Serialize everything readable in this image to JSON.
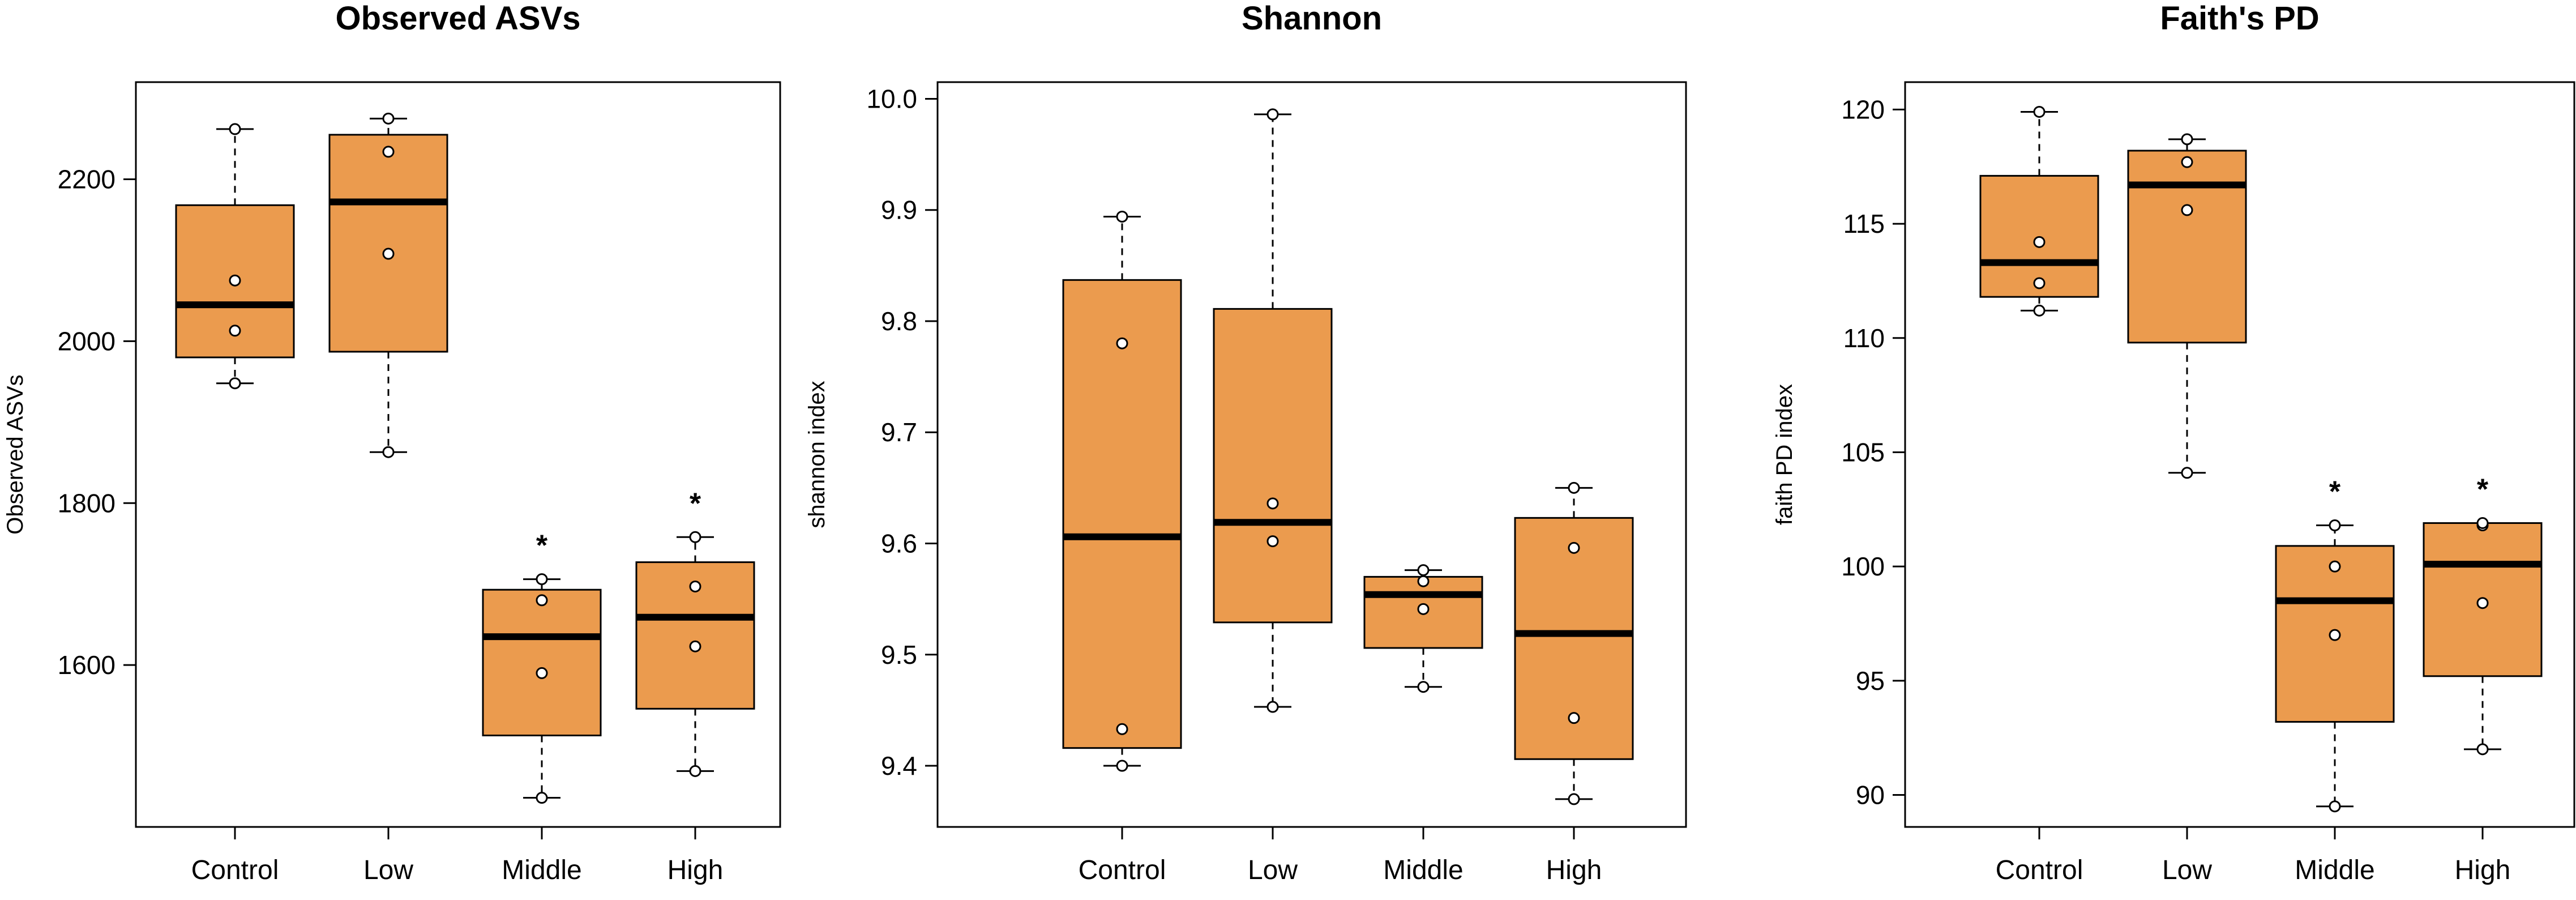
{
  "colors": {
    "box_fill": "#eb9b4e",
    "stroke": "#000000",
    "point_fill": "#ffffff"
  },
  "chart_data": [
    {
      "type": "boxplot",
      "title": "Observed ASVs",
      "xlabel": "",
      "ylabel": "Observed ASVs",
      "categories": [
        "Control",
        "Low",
        "Middle",
        "High"
      ],
      "yticks": [
        1600,
        1800,
        2000,
        2200
      ],
      "ytick_labels": [
        "1600",
        "1800",
        "2000",
        "2200"
      ],
      "ylim": [
        1400,
        2320
      ],
      "boxes": [
        {
          "min": 1948,
          "q1": 1980,
          "median": 2045,
          "q3": 2168,
          "max": 2262,
          "points": [
            1948,
            2013,
            2075,
            2262
          ],
          "significance": ""
        },
        {
          "min": 1863,
          "q1": 1987,
          "median": 2172,
          "q3": 2255,
          "max": 2275,
          "points": [
            1863,
            2108,
            2234,
            2275
          ],
          "significance": ""
        },
        {
          "min": 1436,
          "q1": 1513,
          "median": 1635,
          "q3": 1693,
          "max": 1706,
          "points": [
            1436,
            1590,
            1680,
            1706
          ],
          "significance": "*"
        },
        {
          "min": 1469,
          "q1": 1546,
          "median": 1659,
          "q3": 1727,
          "max": 1758,
          "points": [
            1469,
            1623,
            1697,
            1758
          ],
          "significance": "*"
        }
      ]
    },
    {
      "type": "boxplot",
      "title": "Shannon",
      "xlabel": "",
      "ylabel": "shannon index",
      "categories": [
        "Control",
        "Low",
        "Middle",
        "High"
      ],
      "yticks": [
        9.4,
        9.5,
        9.6,
        9.7,
        9.8,
        9.9,
        10.0
      ],
      "ytick_labels": [
        "9.4",
        "9.5",
        "9.6",
        "9.7",
        "9.8",
        "9.9",
        "10.0"
      ],
      "ylim": [
        9.345,
        10.015
      ],
      "boxes": [
        {
          "min": 9.4,
          "q1": 9.416,
          "median": 9.606,
          "q3": 9.837,
          "max": 9.894,
          "points": [
            9.4,
            9.433,
            9.78,
            9.894
          ],
          "significance": ""
        },
        {
          "min": 9.453,
          "q1": 9.529,
          "median": 9.619,
          "q3": 9.811,
          "max": 9.986,
          "points": [
            9.453,
            9.602,
            9.636,
            9.986
          ],
          "significance": ""
        },
        {
          "min": 9.471,
          "q1": 9.506,
          "median": 9.554,
          "q3": 9.57,
          "max": 9.576,
          "points": [
            9.471,
            9.541,
            9.566,
            9.576
          ],
          "significance": ""
        },
        {
          "min": 9.37,
          "q1": 9.406,
          "median": 9.519,
          "q3": 9.623,
          "max": 9.65,
          "points": [
            9.37,
            9.443,
            9.596,
            9.65
          ],
          "significance": ""
        }
      ]
    },
    {
      "type": "boxplot",
      "title": "Faith's PD",
      "xlabel": "",
      "ylabel": "faith PD index",
      "categories": [
        "Control",
        "Low",
        "Middle",
        "High"
      ],
      "yticks": [
        90,
        95,
        100,
        105,
        110,
        115,
        120
      ],
      "ytick_labels": [
        "90",
        "95",
        "100",
        "105",
        "110",
        "115",
        "120"
      ],
      "ylim": [
        88.6,
        121.2
      ],
      "boxes": [
        {
          "min": 111.2,
          "q1": 111.8,
          "median": 113.3,
          "q3": 117.1,
          "max": 119.9,
          "points": [
            111.2,
            112.4,
            114.2,
            119.9
          ],
          "significance": ""
        },
        {
          "min": 104.1,
          "q1": 109.8,
          "median": 116.7,
          "q3": 118.2,
          "max": 118.7,
          "points": [
            104.1,
            115.6,
            117.7,
            118.7
          ],
          "significance": ""
        },
        {
          "min": 89.5,
          "q1": 93.2,
          "median": 98.5,
          "q3": 100.9,
          "max": 101.8,
          "points": [
            89.5,
            97.0,
            100.0,
            101.8
          ],
          "significance": "*"
        },
        {
          "min": 92.0,
          "q1": 95.2,
          "median": 100.1,
          "q3": 101.9,
          "max": 101.9,
          "points": [
            92.0,
            98.4,
            101.8,
            101.9
          ],
          "significance": "*"
        }
      ]
    }
  ]
}
